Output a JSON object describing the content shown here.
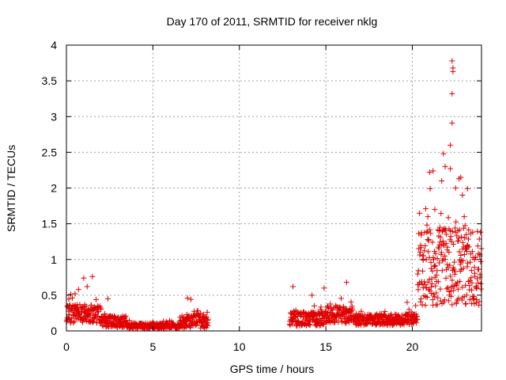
{
  "colors": {
    "background": "#ffffff",
    "axis": "#000000",
    "grid": "#a0a0a0",
    "marker": "#e00000"
  },
  "chart_data": {
    "type": "scatter",
    "title": "Day 170 of 2011, SRMTID for receiver nklg",
    "xlabel": "GPS time / hours",
    "ylabel": "SRMTID / TECUs",
    "xlim": [
      0,
      24
    ],
    "ylim": [
      0,
      4
    ],
    "xticks": [
      0,
      5,
      10,
      15,
      20
    ],
    "xtick_labels": [
      "0",
      "5",
      "10",
      "15",
      "20"
    ],
    "yticks": [
      0,
      0.5,
      1,
      1.5,
      2,
      2.5,
      3,
      3.5,
      4
    ],
    "ytick_labels": [
      "0",
      "0.5",
      "1",
      "1.5",
      "2",
      "2.5",
      "3",
      "3.5",
      "4"
    ],
    "grid": true,
    "marker": "plus",
    "series": [
      {
        "name": "SRMTID",
        "segments": [
          {
            "x_start": 0.0,
            "x_end": 2.0,
            "baseline": 0.24,
            "spread": 0.13
          },
          {
            "x_start": 2.0,
            "x_end": 3.5,
            "baseline": 0.13,
            "spread": 0.08
          },
          {
            "x_start": 3.5,
            "x_end": 6.5,
            "baseline": 0.07,
            "spread": 0.04
          },
          {
            "x_start": 6.5,
            "x_end": 8.2,
            "baseline": 0.13,
            "spread": 0.1
          },
          {
            "x_start": 12.9,
            "x_end": 14.9,
            "baseline": 0.17,
            "spread": 0.1
          },
          {
            "x_start": 14.9,
            "x_end": 16.6,
            "baseline": 0.23,
            "spread": 0.12
          },
          {
            "x_start": 16.6,
            "x_end": 20.3,
            "baseline": 0.16,
            "spread": 0.08
          },
          {
            "x_start": 20.3,
            "x_end": 24.0,
            "baseline": 0.9,
            "spread": 0.55
          }
        ],
        "highlights": [
          {
            "x": 0.5,
            "y": 0.52
          },
          {
            "x": 0.7,
            "y": 0.58
          },
          {
            "x": 1.0,
            "y": 0.74
          },
          {
            "x": 1.2,
            "y": 0.62
          },
          {
            "x": 1.5,
            "y": 0.76
          },
          {
            "x": 2.4,
            "y": 0.45
          },
          {
            "x": 7.0,
            "y": 0.46
          },
          {
            "x": 7.2,
            "y": 0.44
          },
          {
            "x": 13.1,
            "y": 0.62
          },
          {
            "x": 14.2,
            "y": 0.5
          },
          {
            "x": 14.9,
            "y": 0.6
          },
          {
            "x": 16.2,
            "y": 0.68
          },
          {
            "x": 19.7,
            "y": 0.4
          },
          {
            "x": 20.6,
            "y": 1.05
          },
          {
            "x": 20.9,
            "y": 1.6
          },
          {
            "x": 21.0,
            "y": 2.22
          },
          {
            "x": 21.2,
            "y": 2.24
          },
          {
            "x": 21.3,
            "y": 1.7
          },
          {
            "x": 21.6,
            "y": 1.45
          },
          {
            "x": 21.7,
            "y": 2.1
          },
          {
            "x": 21.8,
            "y": 2.48
          },
          {
            "x": 21.9,
            "y": 2.3
          },
          {
            "x": 22.2,
            "y": 2.6
          },
          {
            "x": 22.2,
            "y": 2.27
          },
          {
            "x": 22.3,
            "y": 2.91
          },
          {
            "x": 22.3,
            "y": 3.32
          },
          {
            "x": 22.35,
            "y": 3.63
          },
          {
            "x": 22.35,
            "y": 3.68
          },
          {
            "x": 22.3,
            "y": 3.78
          },
          {
            "x": 22.5,
            "y": 2.0
          },
          {
            "x": 22.7,
            "y": 2.13
          },
          {
            "x": 22.8,
            "y": 2.15
          },
          {
            "x": 22.9,
            "y": 1.9
          },
          {
            "x": 23.0,
            "y": 1.6
          },
          {
            "x": 23.2,
            "y": 1.2
          },
          {
            "x": 23.6,
            "y": 1.0
          },
          {
            "x": 23.9,
            "y": 1.05
          }
        ]
      }
    ]
  }
}
